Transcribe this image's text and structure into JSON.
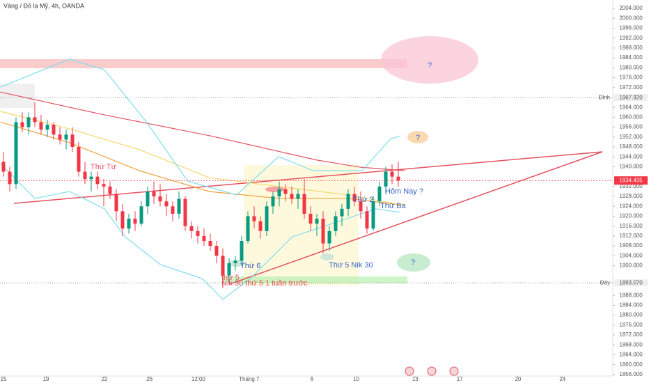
{
  "chart_data": {
    "type": "candlestick",
    "title": "Vàng / Đô la Mỹ, 4h, OANDA",
    "up_color": "#089981",
    "down_color": "#f23645",
    "xlim": [
      -0.556,
      97.222
    ],
    "xticks": [
      {
        "value": 0,
        "label": "15"
      },
      {
        "value": 6.78,
        "label": "19"
      },
      {
        "value": 16.1,
        "label": "22"
      },
      {
        "value": 23.3,
        "label": "26"
      },
      {
        "value": 31.1,
        "label": "12:00"
      },
      {
        "value": 39.2,
        "label": "Tháng 7"
      },
      {
        "value": 49.2,
        "label": "6"
      },
      {
        "value": 56.3,
        "label": "10"
      },
      {
        "value": 65.7,
        "label": "13"
      },
      {
        "value": 72.8,
        "label": "17"
      },
      {
        "value": 82.1,
        "label": "20"
      },
      {
        "value": 89.2,
        "label": "24"
      }
    ],
    "ylim": [
      1855.4,
      2007.4
    ],
    "yticks": [
      {
        "value": 2004,
        "label": "2004.000"
      },
      {
        "value": 2000,
        "label": "2000.000"
      },
      {
        "value": 1996,
        "label": "1996.000"
      },
      {
        "value": 1992,
        "label": "1992.000"
      },
      {
        "value": 1988,
        "label": "1988.000"
      },
      {
        "value": 1984,
        "label": "1984.000"
      },
      {
        "value": 1980,
        "label": "1980.000"
      },
      {
        "value": 1976,
        "label": "1976.000"
      },
      {
        "value": 1972,
        "label": "1972.000"
      },
      {
        "value": 1964,
        "label": "1964.000"
      },
      {
        "value": 1960,
        "label": "1960.000"
      },
      {
        "value": 1956,
        "label": "1956.000"
      },
      {
        "value": 1952,
        "label": "1952.000"
      },
      {
        "value": 1948,
        "label": "1948.000"
      },
      {
        "value": 1944,
        "label": "1944.000"
      },
      {
        "value": 1940,
        "label": "1940.000"
      },
      {
        "value": 1932,
        "label": "1932.000"
      },
      {
        "value": 1928,
        "label": "1928.000"
      },
      {
        "value": 1924,
        "label": "1924.000"
      },
      {
        "value": 1920,
        "label": "1920.000"
      },
      {
        "value": 1916,
        "label": "1916.000"
      },
      {
        "value": 1912,
        "label": "1912.000"
      },
      {
        "value": 1908,
        "label": "1908.000"
      },
      {
        "value": 1904,
        "label": "1904.000"
      },
      {
        "value": 1900,
        "label": "1900.000"
      },
      {
        "value": 1888,
        "label": "1888.000"
      },
      {
        "value": 1884,
        "label": "1884.000"
      },
      {
        "value": 1880,
        "label": "1880.000"
      },
      {
        "value": 1876,
        "label": "1876.000"
      },
      {
        "value": 1872,
        "label": "1872.000"
      },
      {
        "value": 1868,
        "label": "1868.000"
      },
      {
        "value": 1864,
        "label": "1864.000"
      },
      {
        "value": 1860,
        "label": "1860.000"
      },
      {
        "value": 1856,
        "label": "1856.000"
      }
    ],
    "open": [
      1942,
      1938,
      1933,
      1958,
      1956,
      1960,
      1958,
      1955,
      1957,
      1953,
      1951,
      1953,
      1948,
      1938,
      1935,
      1936,
      1933,
      1932,
      1929,
      1922,
      1915,
      1919,
      1917,
      1924,
      1930,
      1928,
      1926,
      1924,
      1921,
      1927,
      1916,
      1914,
      1912,
      1910,
      1908,
      1904,
      1896,
      1901,
      1902,
      1910,
      1920,
      1918,
      1914,
      1924,
      1928,
      1931,
      1929,
      1927,
      1929,
      1921,
      1917,
      1919,
      1909,
      1914,
      1920,
      1923,
      1929,
      1926,
      1922,
      1915,
      1926,
      1932,
      1938,
      1936
    ],
    "high": [
      1946,
      1940,
      1960,
      1962,
      1962,
      1966,
      1961,
      1959,
      1958,
      1956,
      1955,
      1956,
      1950,
      1942,
      1938,
      1938,
      1935,
      1934,
      1931,
      1925,
      1921,
      1922,
      1926,
      1932,
      1934,
      1933,
      1929,
      1926,
      1930,
      1928,
      1918,
      1916,
      1915,
      1913,
      1910,
      1907,
      1903,
      1904,
      1912,
      1922,
      1924,
      1920,
      1926,
      1930,
      1934,
      1933,
      1932,
      1931,
      1935,
      1924,
      1921,
      1922,
      1916,
      1922,
      1925,
      1931,
      1932,
      1930,
      1924,
      1928,
      1934,
      1940,
      1941,
      1942
    ],
    "low": [
      1936,
      1930,
      1931,
      1954,
      1953,
      1956,
      1953,
      1952,
      1951,
      1949,
      1947,
      1946,
      1936,
      1933,
      1930,
      1931,
      1924,
      1927,
      1918,
      1912,
      1913,
      1914,
      1916,
      1921,
      1925,
      1924,
      1920,
      1918,
      1919,
      1914,
      1911,
      1909,
      1908,
      1906,
      1901,
      1891,
      1893,
      1898,
      1900,
      1909,
      1915,
      1911,
      1912,
      1921,
      1924,
      1926,
      1925,
      1923,
      1919,
      1914,
      1912,
      1905,
      1906,
      1912,
      1916,
      1920,
      1924,
      1919,
      1913,
      1914,
      1924,
      1929,
      1933,
      1932
    ],
    "close": [
      1938,
      1933,
      1958,
      1956,
      1960,
      1958,
      1955,
      1957,
      1953,
      1951,
      1953,
      1948,
      1938,
      1935,
      1936,
      1933,
      1932,
      1929,
      1922,
      1915,
      1919,
      1917,
      1924,
      1930,
      1928,
      1926,
      1924,
      1921,
      1927,
      1916,
      1914,
      1912,
      1910,
      1908,
      1904,
      1896,
      1901,
      1902,
      1910,
      1920,
      1918,
      1914,
      1924,
      1928,
      1931,
      1929,
      1927,
      1929,
      1921,
      1917,
      1919,
      1909,
      1914,
      1920,
      1923,
      1929,
      1926,
      1922,
      1915,
      1926,
      1932,
      1938,
      1936,
      1934.4
    ],
    "lines": [
      {
        "color": "#e5525f",
        "x": [
          -0.5,
          16,
          33,
          50,
          57,
          64
        ],
        "values": [
          1970.2,
          1961,
          1952.5,
          1942.7,
          1939.8,
          1938.4
        ]
      },
      {
        "color": "#f0a23a",
        "x": [
          -0.5,
          10.56,
          21.7,
          32.8,
          43.9,
          55,
          63.9
        ],
        "values": [
          1958.1,
          1949.7,
          1938.4,
          1930,
          1927.2,
          1927.2,
          1924.4
        ]
      },
      {
        "color": "#f5d76e",
        "x": [
          -0.5,
          10.56,
          21.7,
          32.8,
          43.9,
          55,
          63.9
        ],
        "values": [
          1962.4,
          1955.3,
          1946.9,
          1935.6,
          1932,
          1928.6,
          1924.4
        ]
      },
      {
        "color": "#7fdcf0",
        "x": [
          -0.5,
          10.56,
          16.1,
          22.8,
          29.4,
          37.2,
          43.9,
          49.4,
          57.2,
          61.7,
          63.3
        ],
        "values": [
          1972.2,
          1983.5,
          1979.2,
          1958.1,
          1934.2,
          1928.6,
          1944.1,
          1938.4,
          1938.4,
          1951.1,
          1952.5
        ]
      },
      {
        "color": "#7fdcf0",
        "x": [
          -0.5,
          5,
          10.56,
          16.1,
          19.4,
          25,
          31.7,
          35,
          39.4,
          46.1,
          52.8,
          59.4,
          63.3
        ],
        "values": [
          1941.3,
          1927.2,
          1930,
          1923,
          1911.7,
          1900.5,
          1894.8,
          1886.4,
          1894.8,
          1911.7,
          1917.3,
          1923,
          1921.6
        ]
      }
    ],
    "levels": [
      {
        "label": "Đỉnh",
        "value": 1967.92,
        "value_label": "1967.920"
      },
      {
        "label": "Đáy",
        "value": 1893.07,
        "value_label": "1893.070"
      }
    ],
    "last_price": {
      "value": 1934.435,
      "value_label": "1934.435",
      "color": "#f23645"
    },
    "annotations": [
      "Thứ Tư",
      "Thứ 6",
      "thứ 5",
      "Nik 30 thứ 5 1 tuần trước",
      "Thứ 5 Nik 30",
      "Thứ 2",
      "Thứ Ba",
      "Hôm Nay ?",
      "?",
      "?",
      "?"
    ]
  }
}
